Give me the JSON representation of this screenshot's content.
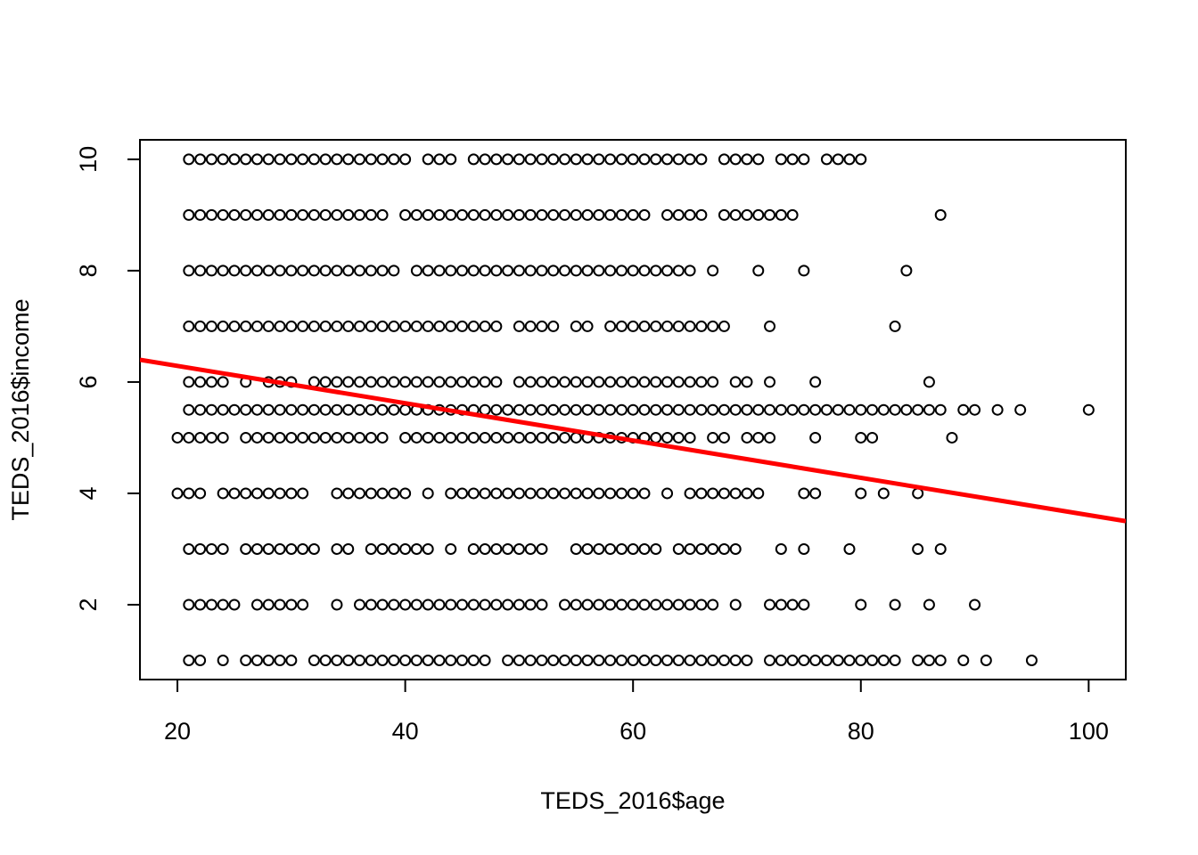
{
  "chart_data": {
    "type": "scatter",
    "x_label": "TEDS_2016$age",
    "y_label": "TEDS_2016$income",
    "xlim": [
      16.71,
      103.26
    ],
    "ylim": [
      0.656,
      10.35
    ],
    "xticks": [
      20,
      40,
      60,
      80,
      100
    ],
    "yticks": [
      2,
      4,
      6,
      8,
      10
    ],
    "point_color": "#000000",
    "rows": [
      {
        "y": 10,
        "x": [
          21,
          22,
          23,
          24,
          25,
          26,
          27,
          28,
          29,
          30,
          31,
          32,
          33,
          34,
          35,
          36,
          37,
          38,
          39,
          40,
          42,
          43,
          44,
          46,
          47,
          48,
          49,
          50,
          51,
          52,
          53,
          54,
          55,
          56,
          57,
          58,
          59,
          60,
          61,
          62,
          63,
          64,
          65,
          66,
          68,
          69,
          70,
          71,
          73,
          74,
          75,
          77,
          78,
          79,
          80
        ]
      },
      {
        "y": 9,
        "x": [
          21,
          22,
          23,
          24,
          25,
          26,
          27,
          28,
          29,
          30,
          31,
          32,
          33,
          34,
          35,
          36,
          37,
          38,
          40,
          41,
          42,
          43,
          44,
          45,
          46,
          47,
          48,
          49,
          50,
          51,
          52,
          53,
          54,
          55,
          56,
          57,
          58,
          59,
          60,
          61,
          63,
          64,
          65,
          66,
          68,
          69,
          70,
          71,
          72,
          73,
          74,
          87
        ]
      },
      {
        "y": 8,
        "x": [
          21,
          22,
          23,
          24,
          25,
          26,
          27,
          28,
          29,
          30,
          31,
          32,
          33,
          34,
          35,
          36,
          37,
          38,
          39,
          41,
          42,
          43,
          44,
          45,
          46,
          47,
          48,
          49,
          50,
          51,
          52,
          53,
          54,
          55,
          56,
          57,
          58,
          59,
          60,
          61,
          62,
          63,
          64,
          65,
          67,
          71,
          75,
          84
        ]
      },
      {
        "y": 7,
        "x": [
          21,
          22,
          23,
          24,
          25,
          26,
          27,
          28,
          29,
          30,
          31,
          32,
          33,
          34,
          35,
          36,
          37,
          38,
          39,
          40,
          41,
          42,
          43,
          44,
          45,
          46,
          47,
          48,
          50,
          51,
          52,
          53,
          55,
          56,
          58,
          59,
          60,
          61,
          62,
          63,
          64,
          65,
          66,
          67,
          68,
          72,
          83
        ]
      },
      {
        "y": 6,
        "x": [
          21,
          22,
          23,
          24,
          26,
          28,
          29,
          30,
          32,
          33,
          34,
          35,
          36,
          37,
          38,
          39,
          40,
          41,
          42,
          43,
          44,
          45,
          46,
          47,
          48,
          50,
          51,
          52,
          53,
          54,
          55,
          56,
          57,
          58,
          59,
          60,
          61,
          62,
          63,
          64,
          65,
          66,
          67,
          69,
          70,
          72,
          76,
          86
        ]
      },
      {
        "y": 5.5,
        "x": [
          21,
          22,
          23,
          24,
          25,
          26,
          27,
          28,
          29,
          30,
          31,
          32,
          33,
          34,
          35,
          36,
          37,
          38,
          39,
          40,
          41,
          42,
          43,
          44,
          45,
          46,
          47,
          48,
          49,
          50,
          51,
          52,
          53,
          54,
          55,
          56,
          57,
          58,
          59,
          60,
          61,
          62,
          63,
          64,
          65,
          66,
          67,
          68,
          69,
          70,
          71,
          72,
          73,
          74,
          75,
          76,
          77,
          78,
          79,
          80,
          81,
          82,
          83,
          84,
          85,
          86,
          87,
          89,
          90,
          92,
          94,
          100
        ]
      },
      {
        "y": 5,
        "x": [
          20,
          21,
          22,
          23,
          24,
          26,
          27,
          28,
          29,
          30,
          31,
          32,
          33,
          34,
          35,
          36,
          37,
          38,
          40,
          41,
          42,
          43,
          44,
          45,
          46,
          47,
          48,
          49,
          50,
          51,
          52,
          53,
          54,
          55,
          56,
          57,
          58,
          59,
          60,
          61,
          62,
          63,
          64,
          65,
          67,
          68,
          70,
          71,
          72,
          76,
          80,
          81,
          88
        ]
      },
      {
        "y": 4,
        "x": [
          20,
          21,
          22,
          24,
          25,
          26,
          27,
          28,
          29,
          30,
          31,
          34,
          35,
          36,
          37,
          38,
          39,
          40,
          42,
          44,
          45,
          46,
          47,
          48,
          49,
          50,
          51,
          52,
          53,
          54,
          55,
          56,
          57,
          58,
          59,
          60,
          61,
          63,
          65,
          66,
          67,
          68,
          69,
          70,
          71,
          75,
          76,
          80,
          82,
          85
        ]
      },
      {
        "y": 3,
        "x": [
          21,
          22,
          23,
          24,
          26,
          27,
          28,
          29,
          30,
          31,
          32,
          34,
          35,
          37,
          38,
          39,
          40,
          41,
          42,
          44,
          46,
          47,
          48,
          49,
          50,
          51,
          52,
          55,
          56,
          57,
          58,
          59,
          60,
          61,
          62,
          64,
          65,
          66,
          67,
          68,
          69,
          73,
          75,
          79,
          85,
          87
        ]
      },
      {
        "y": 2,
        "x": [
          21,
          22,
          23,
          24,
          25,
          27,
          28,
          29,
          30,
          31,
          34,
          36,
          37,
          38,
          39,
          40,
          41,
          42,
          43,
          44,
          45,
          46,
          47,
          48,
          49,
          50,
          51,
          52,
          54,
          55,
          56,
          57,
          58,
          59,
          60,
          61,
          62,
          63,
          64,
          65,
          66,
          67,
          69,
          72,
          73,
          74,
          75,
          80,
          83,
          86,
          90
        ]
      },
      {
        "y": 1,
        "x": [
          21,
          22,
          24,
          26,
          27,
          28,
          29,
          30,
          32,
          33,
          34,
          35,
          36,
          37,
          38,
          39,
          40,
          41,
          42,
          43,
          44,
          45,
          46,
          47,
          49,
          50,
          51,
          52,
          53,
          54,
          55,
          56,
          57,
          58,
          59,
          60,
          61,
          62,
          63,
          64,
          65,
          66,
          67,
          68,
          69,
          70,
          72,
          73,
          74,
          75,
          76,
          77,
          78,
          79,
          80,
          81,
          82,
          83,
          85,
          86,
          87,
          89,
          91,
          95
        ]
      }
    ],
    "fit": {
      "color": "#ff0000",
      "x": [
        16.71,
        103.26
      ],
      "y": [
        6.4,
        3.5
      ]
    }
  }
}
